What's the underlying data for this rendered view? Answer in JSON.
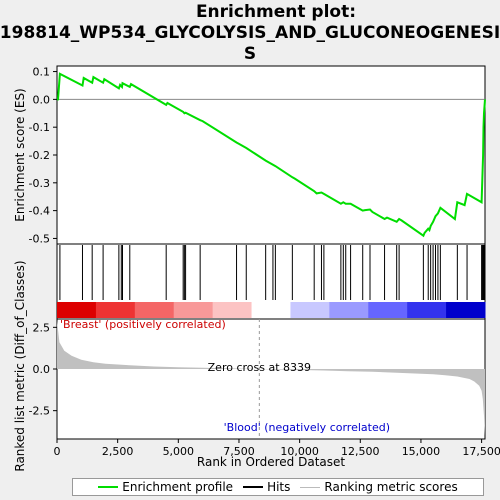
{
  "chart_data": {
    "type": "line",
    "title_lines": [
      "Enrichment plot:",
      "198814_WP534_GLYCOLYSIS_AND_GLUCONEOGENESI",
      "S"
    ],
    "top_panel": {
      "ylabel": "Enrichment score (ES)",
      "ylim": [
        -0.52,
        0.12
      ],
      "yticks": [
        0.1,
        0.0,
        -0.1,
        -0.2,
        -0.3,
        -0.4,
        -0.5
      ],
      "ytick_labels": [
        "0.1",
        "0.0",
        "-0.1",
        "-0.2",
        "-0.3",
        "-0.4",
        "-0.5"
      ],
      "series": [
        {
          "name": "Enrichment profile",
          "color": "#00dd00",
          "x": [
            0,
            40,
            120,
            1050,
            1100,
            1450,
            1500,
            1900,
            1950,
            2550,
            2600,
            2680,
            2700,
            3000,
            3050,
            4500,
            4550,
            5200,
            5250,
            5300,
            5900,
            6000,
            7400,
            7500,
            7800,
            8600,
            8700,
            9000,
            9700,
            9800,
            10600,
            10700,
            10900,
            11000,
            11700,
            11800,
            11900,
            12100,
            12200,
            12600,
            12700,
            12900,
            13000,
            13500,
            13600,
            14000,
            14100,
            14200,
            15100,
            15150,
            15300,
            15350,
            15400,
            15500,
            15600,
            15700,
            15800,
            16400,
            16500,
            16800,
            16900,
            17500,
            17530,
            17560,
            17580,
            17600,
            17640
          ],
          "y": [
            0.0,
            0.0,
            0.092,
            0.05,
            0.077,
            0.06,
            0.08,
            0.06,
            0.073,
            0.04,
            0.052,
            0.045,
            0.058,
            0.045,
            0.055,
            -0.02,
            -0.013,
            -0.045,
            -0.05,
            -0.048,
            -0.075,
            -0.078,
            -0.155,
            -0.16,
            -0.175,
            -0.22,
            -0.225,
            -0.24,
            -0.28,
            -0.285,
            -0.33,
            -0.338,
            -0.335,
            -0.34,
            -0.375,
            -0.37,
            -0.375,
            -0.375,
            -0.38,
            -0.4,
            -0.398,
            -0.396,
            -0.405,
            -0.43,
            -0.425,
            -0.44,
            -0.43,
            -0.435,
            -0.49,
            -0.48,
            -0.465,
            -0.47,
            -0.455,
            -0.44,
            -0.42,
            -0.41,
            -0.39,
            -0.43,
            -0.37,
            -0.38,
            -0.34,
            -0.37,
            -0.29,
            -0.2,
            -0.1,
            -0.05,
            0.0
          ]
        }
      ]
    },
    "hits_panel": {
      "series_name": "Hits",
      "hit_positions": [
        120,
        1050,
        1450,
        1900,
        2550,
        2650,
        2700,
        3000,
        4500,
        5200,
        5250,
        5300,
        5900,
        7400,
        7800,
        8600,
        8900,
        9000,
        9700,
        10600,
        10900,
        11000,
        11700,
        11800,
        11900,
        12100,
        12600,
        12900,
        13500,
        14000,
        14100,
        15100,
        15300,
        15400,
        15500,
        15600,
        15700,
        15800,
        16500,
        16900,
        17500,
        17530,
        17560,
        17580,
        17600,
        17640
      ],
      "heatmap_colors": [
        "#dd0000",
        "#ee3333",
        "#f46666",
        "#f89999",
        "#fcc3c3",
        "#ffffff",
        "#c8c8ff",
        "#9a9aff",
        "#6666ff",
        "#3333ee",
        "#0000cc"
      ]
    },
    "bottom_panel": {
      "ylabel": "Ranked list metric (Diff_of_Classes)",
      "xlabel": "Rank in Ordered Dataset",
      "ylim": [
        -4.2,
        3.0
      ],
      "yticks": [
        2.5,
        0.0,
        -2.5
      ],
      "ytick_labels": [
        "2.5",
        "0.0",
        "-2.5"
      ],
      "series_name": "Ranking metric scores",
      "metric_x": [
        0,
        100,
        300,
        600,
        1000,
        1500,
        2000,
        3000,
        4000,
        5000,
        6000,
        7000,
        8339,
        9000,
        10000,
        11000,
        12000,
        13000,
        14000,
        15000,
        15500,
        16000,
        16500,
        17000,
        17200,
        17400,
        17500,
        17550,
        17600,
        17640
      ],
      "metric_y": [
        2.9,
        1.6,
        1.1,
        0.8,
        0.55,
        0.4,
        0.32,
        0.22,
        0.15,
        0.1,
        0.07,
        0.04,
        0.0,
        -0.03,
        -0.06,
        -0.09,
        -0.13,
        -0.17,
        -0.22,
        -0.28,
        -0.32,
        -0.37,
        -0.45,
        -0.6,
        -0.75,
        -1.0,
        -1.3,
        -1.8,
        -2.8,
        -4.0
      ],
      "zero_cross": 8339,
      "zero_cross_text": "Zero cross at 8339",
      "positive_label": "'Breast' (positively correlated)",
      "negative_label": "'Blood' (negatively correlated)"
    },
    "x_axis": {
      "xlim": [
        0,
        17640
      ],
      "xticks": [
        0,
        2500,
        5000,
        7500,
        10000,
        12500,
        15000,
        17500
      ],
      "xtick_labels": [
        "0",
        "2,500",
        "5,000",
        "7,500",
        "10,000",
        "12,500",
        "15,000",
        "17,500"
      ]
    },
    "legend": {
      "items": [
        "Enrichment profile",
        "Hits",
        "Ranking metric scores"
      ]
    }
  }
}
